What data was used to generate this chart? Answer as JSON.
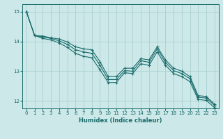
{
  "xlabel": "Humidex (Indice chaleur)",
  "background_color": "#cce8e8",
  "grid_color": "#aad0d0",
  "line_color": "#1a6b6b",
  "xlim": [
    -0.5,
    23.5
  ],
  "ylim": [
    11.75,
    15.25
  ],
  "yticks": [
    12,
    13,
    14,
    15
  ],
  "xticks": [
    0,
    1,
    2,
    3,
    4,
    5,
    6,
    7,
    8,
    9,
    10,
    11,
    12,
    13,
    14,
    15,
    16,
    17,
    18,
    19,
    20,
    21,
    22,
    23
  ],
  "series1": [
    15.0,
    14.2,
    14.18,
    14.12,
    14.08,
    13.98,
    13.82,
    13.75,
    13.72,
    13.32,
    12.82,
    12.82,
    13.1,
    13.1,
    13.42,
    13.38,
    13.82,
    13.38,
    13.1,
    13.0,
    12.82,
    12.18,
    12.15,
    11.9
  ],
  "series2": [
    15.0,
    14.2,
    14.15,
    14.1,
    14.02,
    13.9,
    13.72,
    13.65,
    13.6,
    13.2,
    12.72,
    12.72,
    13.02,
    13.0,
    13.35,
    13.3,
    13.75,
    13.3,
    13.02,
    12.92,
    12.75,
    12.12,
    12.1,
    11.85
  ],
  "series3": [
    15.0,
    14.2,
    14.1,
    14.05,
    13.95,
    13.8,
    13.6,
    13.5,
    13.45,
    13.05,
    12.62,
    12.62,
    12.95,
    12.92,
    13.25,
    13.2,
    13.65,
    13.2,
    12.92,
    12.82,
    12.65,
    12.05,
    12.02,
    11.78
  ]
}
